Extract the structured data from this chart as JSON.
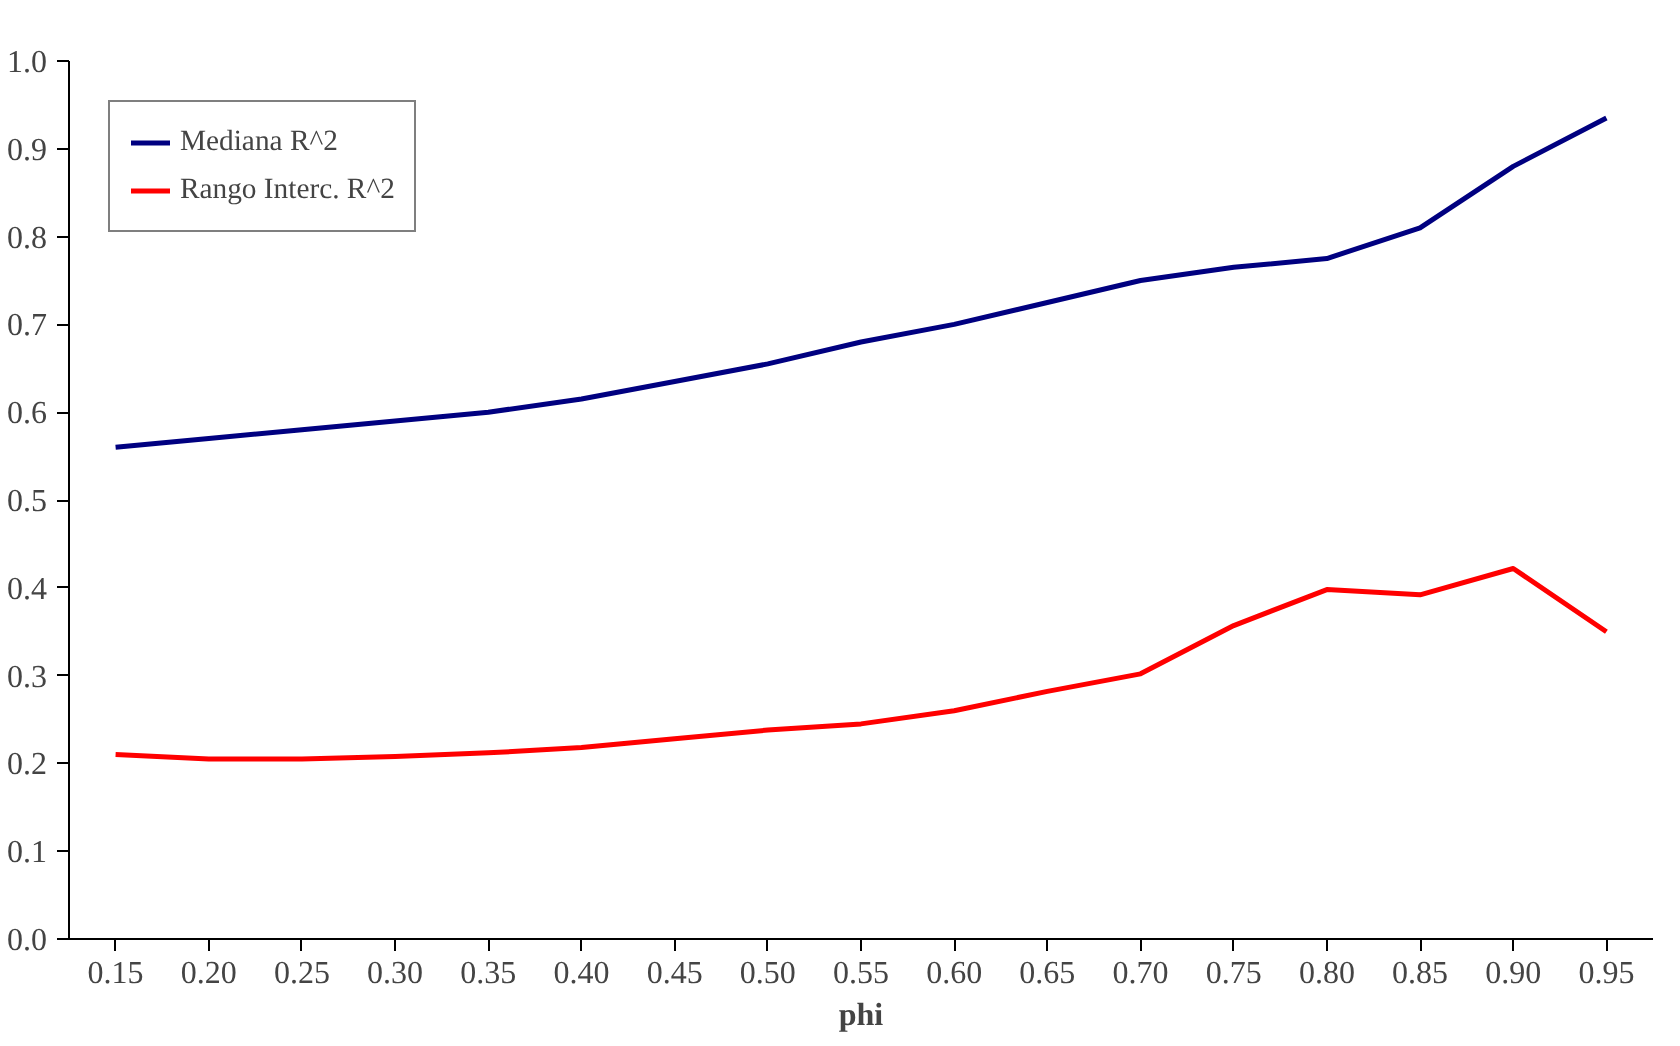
{
  "chart_data": {
    "type": "line",
    "xlabel": "phi",
    "categories": [
      "0.15",
      "0.20",
      "0.25",
      "0.30",
      "0.35",
      "0.40",
      "0.45",
      "0.50",
      "0.55",
      "0.60",
      "0.65",
      "0.70",
      "0.75",
      "0.80",
      "0.85",
      "0.90",
      "0.95"
    ],
    "series": [
      {
        "name": "Mediana R^2",
        "color": "#000080",
        "values": [
          0.56,
          0.57,
          0.58,
          0.59,
          0.6,
          0.615,
          0.635,
          0.655,
          0.68,
          0.7,
          0.725,
          0.75,
          0.765,
          0.775,
          0.81,
          0.88,
          0.935
        ]
      },
      {
        "name": "Rango Interc. R^2",
        "color": "#ff0000",
        "values": [
          0.21,
          0.205,
          0.205,
          0.208,
          0.212,
          0.218,
          0.228,
          0.238,
          0.245,
          0.26,
          0.282,
          0.302,
          0.357,
          0.398,
          0.392,
          0.422,
          0.35
        ]
      }
    ],
    "ylim": [
      0,
      1
    ],
    "yticks": [
      {
        "value": 0,
        "label": "0.0"
      },
      0.1,
      0.2,
      0.3,
      0.4,
      0.5,
      0.6,
      0.7,
      0.8,
      0.9,
      {
        "value": 1,
        "label": "1.0"
      }
    ],
    "grid": false,
    "legend": "top left",
    "marker": "none",
    "line_style": "solid"
  }
}
